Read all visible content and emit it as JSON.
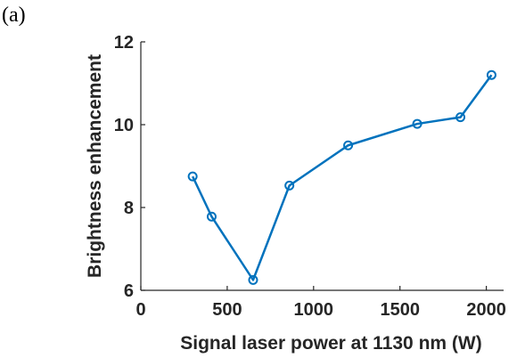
{
  "panel_label": "(a)",
  "chart_data": {
    "type": "line",
    "xlabel": "Signal laser power at 1130 nm (W)",
    "ylabel": "Brightness enhancement",
    "xlim": [
      0,
      2100
    ],
    "ylim": [
      6,
      12
    ],
    "xticks": [
      0,
      500,
      1000,
      1500,
      2000
    ],
    "yticks": [
      6,
      8,
      10,
      12
    ],
    "grid": false,
    "line_color": "#0072BD",
    "marker": "circle",
    "series": [
      {
        "x": [
          300,
          410,
          650,
          860,
          1200,
          1600,
          1850,
          2030
        ],
        "y": [
          8.75,
          7.78,
          6.25,
          8.53,
          9.5,
          10.02,
          10.18,
          11.2
        ]
      }
    ]
  }
}
